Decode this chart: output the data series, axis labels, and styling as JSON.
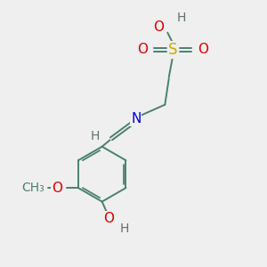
{
  "bg_color": "#efefef",
  "atom_colors": {
    "C": "#4a8070",
    "N": "#0000dd",
    "O": "#dd0000",
    "S": "#ccaa00",
    "H_gray": "#607070"
  },
  "bond_color": "#4a8070",
  "bond_lw": 1.4,
  "font_size": 10,
  "fig_size": [
    3.0,
    3.0
  ],
  "dpi": 100,
  "xlim": [
    0,
    10
  ],
  "ylim": [
    0,
    10
  ]
}
